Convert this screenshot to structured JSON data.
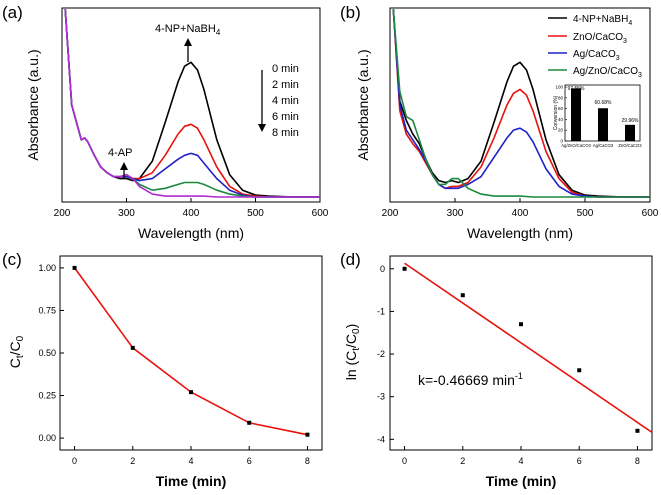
{
  "colors": {
    "black": "#000000",
    "red": "#e8120c",
    "blue": "#1f22c8",
    "green": "#1a8a3e",
    "magenta": "#b02ad6"
  },
  "chart_data": [
    {
      "panel": "(a)",
      "type": "line",
      "xlabel": "Wavelength (nm)",
      "ylabel": "Absorbance (a.u.)",
      "xlim": [
        200,
        600
      ],
      "xticks": [
        200,
        300,
        400,
        500,
        600
      ],
      "y_ticks_shown": false,
      "annotations": [
        "4-NP+NaBH4",
        "4-AP"
      ],
      "legend_title": "",
      "series": [
        {
          "name": "0 min",
          "color": "black",
          "x": [
            205,
            215,
            225,
            230,
            235,
            240,
            250,
            260,
            270,
            280,
            290,
            300,
            310,
            320,
            340,
            360,
            380,
            390,
            400,
            410,
            420,
            440,
            460,
            480,
            500,
            520,
            560,
            600
          ],
          "y": [
            1.08,
            0.48,
            0.36,
            0.3,
            0.31,
            0.29,
            0.22,
            0.16,
            0.13,
            0.11,
            0.1,
            0.1,
            0.09,
            0.1,
            0.19,
            0.39,
            0.6,
            0.68,
            0.7,
            0.66,
            0.56,
            0.3,
            0.12,
            0.04,
            0.015,
            0.01,
            0.005,
            0.005
          ]
        },
        {
          "name": "2 min",
          "color": "red",
          "x": [
            205,
            215,
            225,
            230,
            235,
            240,
            250,
            260,
            270,
            280,
            290,
            300,
            310,
            320,
            340,
            360,
            380,
            390,
            400,
            410,
            420,
            440,
            460,
            480,
            500,
            520,
            560,
            600
          ],
          "y": [
            1.08,
            0.48,
            0.36,
            0.3,
            0.31,
            0.29,
            0.22,
            0.16,
            0.13,
            0.11,
            0.11,
            0.11,
            0.1,
            0.1,
            0.13,
            0.22,
            0.33,
            0.37,
            0.38,
            0.36,
            0.3,
            0.16,
            0.06,
            0.02,
            0.01,
            0.005,
            0.005,
            0.005
          ]
        },
        {
          "name": "4 min",
          "color": "blue",
          "x": [
            205,
            215,
            225,
            230,
            235,
            240,
            250,
            260,
            270,
            280,
            290,
            300,
            310,
            320,
            340,
            360,
            380,
            390,
            400,
            410,
            420,
            440,
            460,
            480,
            500,
            520,
            560,
            600
          ],
          "y": [
            1.08,
            0.48,
            0.36,
            0.3,
            0.31,
            0.29,
            0.22,
            0.16,
            0.13,
            0.11,
            0.11,
            0.11,
            0.1,
            0.09,
            0.1,
            0.15,
            0.2,
            0.22,
            0.23,
            0.22,
            0.18,
            0.1,
            0.04,
            0.015,
            0.005,
            0.005,
            0.005,
            0.005
          ]
        },
        {
          "name": "6 min",
          "color": "green",
          "x": [
            205,
            215,
            225,
            230,
            235,
            240,
            250,
            260,
            270,
            280,
            290,
            300,
            310,
            320,
            340,
            360,
            380,
            390,
            400,
            410,
            420,
            440,
            460,
            480,
            500,
            520,
            560,
            600
          ],
          "y": [
            1.08,
            0.48,
            0.36,
            0.3,
            0.31,
            0.29,
            0.22,
            0.16,
            0.13,
            0.11,
            0.11,
            0.12,
            0.1,
            0.07,
            0.04,
            0.05,
            0.07,
            0.08,
            0.08,
            0.08,
            0.07,
            0.04,
            0.02,
            0.01,
            0.005,
            0.005,
            0.005,
            0.005
          ]
        },
        {
          "name": "8 min",
          "color": "magenta",
          "x": [
            205,
            215,
            225,
            230,
            235,
            240,
            250,
            260,
            270,
            280,
            290,
            300,
            310,
            320,
            340,
            360,
            380,
            390,
            400,
            410,
            420,
            440,
            460,
            480,
            500,
            520,
            560,
            600
          ],
          "y": [
            1.08,
            0.48,
            0.36,
            0.3,
            0.31,
            0.29,
            0.22,
            0.16,
            0.13,
            0.11,
            0.11,
            0.12,
            0.1,
            0.06,
            0.02,
            0.01,
            0.01,
            0.01,
            0.01,
            0.01,
            0.01,
            0.005,
            0.005,
            0.005,
            0.005,
            0.005,
            0.005,
            0.005
          ]
        }
      ],
      "time_labels": [
        "0 min",
        "2 min",
        "4 min",
        "6 min",
        "8 min"
      ]
    },
    {
      "panel": "(b)",
      "type": "line",
      "xlabel": "Wavelength (nm)",
      "ylabel": "Absorbance (a.u.)",
      "xlim": [
        200,
        600
      ],
      "xticks": [
        200,
        300,
        400,
        500,
        600
      ],
      "y_ticks_shown": false,
      "legend": [
        "4-NP+NaBH4",
        "ZnO/CaCO3",
        "Ag/CaCO3",
        "Ag/ZnO/CaCO3"
      ],
      "legend_placement": "top-right",
      "series": [
        {
          "name": "4-NP+NaBH4",
          "color": "black",
          "x": [
            205,
            215,
            225,
            235,
            245,
            255,
            265,
            275,
            285,
            295,
            305,
            320,
            340,
            360,
            380,
            390,
            400,
            410,
            420,
            440,
            460,
            480,
            500,
            520,
            560,
            600
          ],
          "y": [
            1.1,
            0.5,
            0.4,
            0.33,
            0.28,
            0.2,
            0.13,
            0.09,
            0.08,
            0.09,
            0.08,
            0.1,
            0.19,
            0.39,
            0.6,
            0.68,
            0.7,
            0.66,
            0.56,
            0.3,
            0.12,
            0.04,
            0.015,
            0.01,
            0.005,
            0.005
          ]
        },
        {
          "name": "ZnO/CaCO3",
          "color": "red",
          "x": [
            205,
            215,
            225,
            235,
            245,
            255,
            265,
            275,
            285,
            295,
            305,
            320,
            340,
            360,
            380,
            390,
            400,
            410,
            420,
            440,
            460,
            480,
            500,
            520,
            560,
            600
          ],
          "y": [
            1.1,
            0.45,
            0.33,
            0.28,
            0.24,
            0.18,
            0.12,
            0.07,
            0.05,
            0.06,
            0.06,
            0.08,
            0.16,
            0.31,
            0.48,
            0.54,
            0.56,
            0.53,
            0.45,
            0.24,
            0.1,
            0.03,
            0.01,
            0.005,
            0.005,
            0.005
          ]
        },
        {
          "name": "Ag/CaCO3",
          "color": "blue",
          "x": [
            205,
            215,
            225,
            235,
            245,
            255,
            265,
            275,
            285,
            295,
            305,
            320,
            340,
            360,
            380,
            390,
            400,
            410,
            420,
            440,
            460,
            480,
            500,
            520,
            560,
            600
          ],
          "y": [
            1.1,
            0.48,
            0.35,
            0.3,
            0.25,
            0.19,
            0.12,
            0.07,
            0.05,
            0.05,
            0.05,
            0.07,
            0.11,
            0.21,
            0.31,
            0.35,
            0.36,
            0.34,
            0.29,
            0.15,
            0.06,
            0.02,
            0.01,
            0.005,
            0.005,
            0.005
          ]
        },
        {
          "name": "Ag/ZnO/CaCO3",
          "color": "green",
          "x": [
            205,
            215,
            225,
            235,
            245,
            255,
            265,
            275,
            285,
            295,
            305,
            320,
            340,
            360,
            380,
            400,
            420,
            440,
            480,
            520,
            560,
            600
          ],
          "y": [
            1.1,
            0.55,
            0.42,
            0.4,
            0.3,
            0.2,
            0.12,
            0.07,
            0.07,
            0.1,
            0.1,
            0.05,
            0.02,
            0.01,
            0.01,
            0.01,
            0.005,
            0.005,
            0.005,
            0.005,
            0.005,
            0.005
          ]
        }
      ],
      "inset": {
        "type": "bar",
        "ylabel": "Conversion (%)",
        "yticks": [
          0,
          20,
          40,
          60,
          80,
          100
        ],
        "ylim": [
          0,
          100
        ],
        "categories": [
          "Ag/ZnO/CaCO3",
          "Ag/CaCO3",
          "ZnO/CaCO3"
        ],
        "values": [
          97.55,
          60.68,
          29.96
        ],
        "value_labels": [
          "97.55%",
          "60.68%",
          "29.96%"
        ]
      }
    },
    {
      "panel": "(c)",
      "type": "line",
      "xlabel": "Time (min)",
      "ylabel": "Ct/C0",
      "xlim": [
        -0.5,
        8.5
      ],
      "ylim": [
        -0.07,
        1.07
      ],
      "xticks": [
        0,
        2,
        4,
        6,
        8
      ],
      "yticks": [
        "0.00",
        "0.25",
        "0.50",
        "0.75",
        "1.00"
      ],
      "x": [
        0,
        2,
        4,
        6,
        8
      ],
      "y": [
        1.0,
        0.53,
        0.27,
        0.09,
        0.02
      ]
    },
    {
      "panel": "(d)",
      "type": "scatter",
      "xlabel": "Time (min)",
      "ylabel": "ln (Ct/C0)",
      "xlim": [
        -0.5,
        8.5
      ],
      "ylim": [
        -4.25,
        0.3
      ],
      "xticks": [
        0,
        2,
        4,
        6,
        8
      ],
      "yticks": [
        0,
        -1,
        -2,
        -3,
        -4
      ],
      "x": [
        0,
        2,
        4,
        6,
        8
      ],
      "y": [
        0,
        -0.62,
        -1.3,
        -2.38,
        -3.8
      ],
      "fit_line": {
        "slope": -0.46669,
        "intercept": 0.13,
        "x_range": [
          0,
          8.5
        ]
      },
      "annotation": "k=-0.46669 min-1"
    }
  ],
  "labels": {
    "panel_a": "(a)",
    "panel_b": "(b)",
    "panel_c": "(c)",
    "panel_d": "(d)",
    "a_main_title": "4-NP+NaBH",
    "a_main_title_sub": "4",
    "a_4ap": "4-AP",
    "b_legend_1": "4-NP+NaBH",
    "b_legend_1_sub": "4",
    "b_legend_2": "ZnO/CaCO",
    "b_legend_2_sub": "3",
    "b_legend_3": "Ag/CaCO",
    "b_legend_3_sub": "3",
    "b_legend_4": "Ag/ZnO/CaCO",
    "b_legend_4_sub": "3",
    "inset_ylabel": "Conversion (%)",
    "inset_cat_1": "Ag/ZnO/CaCO3",
    "inset_cat_2": "Ag/CaCO3",
    "inset_cat_3": "ZnO/CaCO3",
    "inset_val_1": "97.55%",
    "inset_val_2": "60.68%",
    "inset_val_3": "29.96%",
    "wavelength_label": "Wavelength (nm)",
    "absorbance_label": "Absorbance (a.u.)",
    "time_label": "Time (min)",
    "c_ylabel_main": "C",
    "c_ylabel_sub1": "t",
    "c_ylabel_mid": "/C",
    "c_ylabel_sub2": "0",
    "d_ylabel_pre": "ln (C",
    "d_ylabel_sub1": "t",
    "d_ylabel_mid": "/C",
    "d_ylabel_sub2": "0",
    "d_ylabel_post": ")",
    "d_k_text": "k=-0.46669 min",
    "d_k_sup": "-1"
  }
}
